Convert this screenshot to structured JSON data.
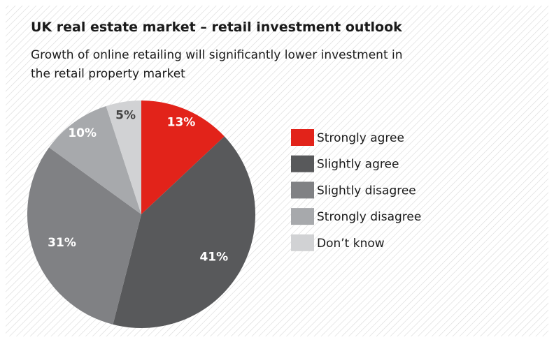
{
  "chart_data": {
    "type": "pie",
    "title": "UK real estate market – retail investment outlook",
    "subtitle": "Growth of online retailing will significantly lower investment in the retail property market",
    "categories": [
      "Strongly agree",
      "Slightly agree",
      "Slightly disagree",
      "Strongly disagree",
      "Don’t know"
    ],
    "values": [
      13,
      41,
      31,
      10,
      5
    ],
    "value_labels": [
      "13%",
      "41%",
      "31%",
      "10%",
      "5%"
    ],
    "colors": [
      "#e2231a",
      "#58595b",
      "#808184",
      "#a7a9ac",
      "#d1d2d4"
    ],
    "legend": "right"
  }
}
